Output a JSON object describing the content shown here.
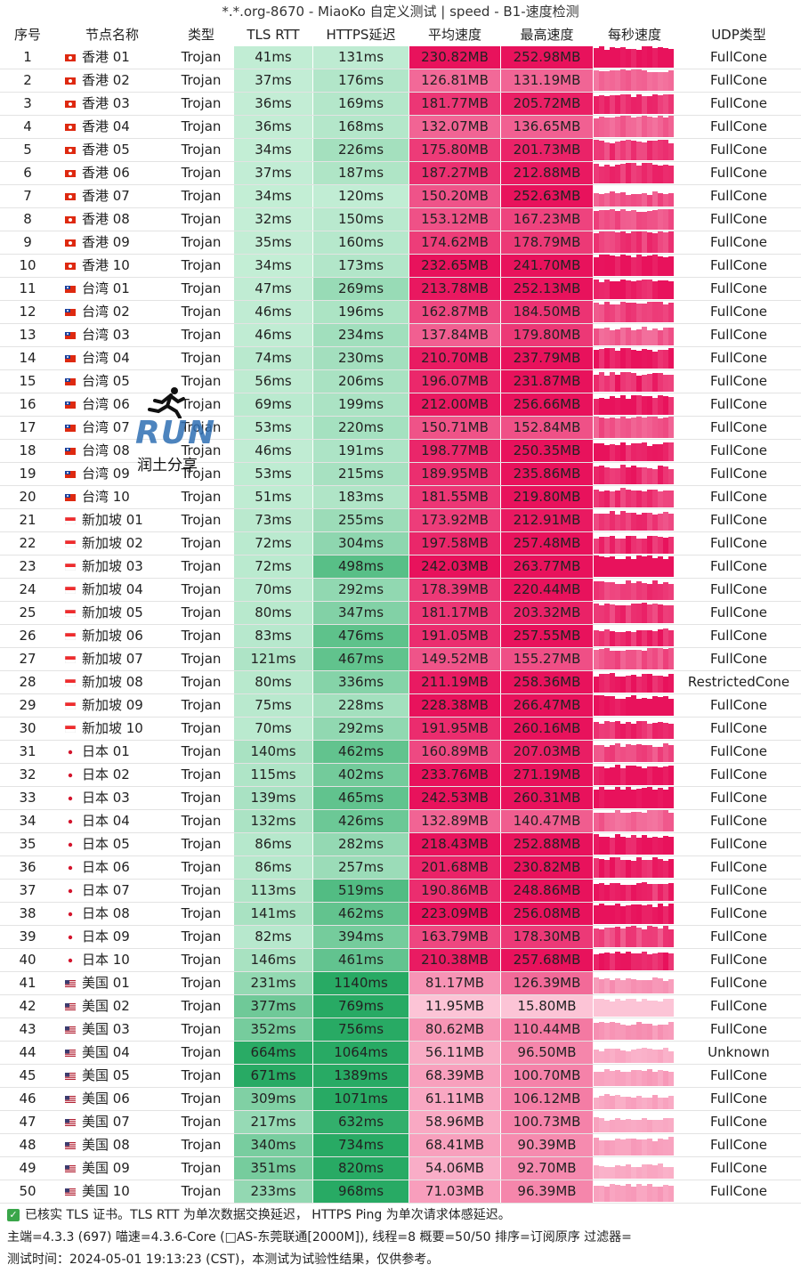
{
  "window": {
    "title": "*.*.org-8670 - MiaoKo 自定义测试 | speed - B1-速度检测"
  },
  "columns": {
    "idx": "序号",
    "name": "节点名称",
    "type": "类型",
    "tls": "TLS RTT",
    "https": "HTTPS延迟",
    "avg": "平均速度",
    "max": "最高速度",
    "persec": "每秒速度",
    "udp": "UDP类型"
  },
  "rows": [
    {
      "idx": "1",
      "flag": "hk",
      "name": "香港 01",
      "type": "Trojan",
      "tls": "41ms",
      "https": "131ms",
      "avg": "230.82MB",
      "max": "252.98MB",
      "udp": "FullCone"
    },
    {
      "idx": "2",
      "flag": "hk",
      "name": "香港 02",
      "type": "Trojan",
      "tls": "37ms",
      "https": "176ms",
      "avg": "126.81MB",
      "max": "131.19MB",
      "udp": "FullCone"
    },
    {
      "idx": "3",
      "flag": "hk",
      "name": "香港 03",
      "type": "Trojan",
      "tls": "36ms",
      "https": "169ms",
      "avg": "181.77MB",
      "max": "205.72MB",
      "udp": "FullCone"
    },
    {
      "idx": "4",
      "flag": "hk",
      "name": "香港 04",
      "type": "Trojan",
      "tls": "36ms",
      "https": "168ms",
      "avg": "132.07MB",
      "max": "136.65MB",
      "udp": "FullCone"
    },
    {
      "idx": "5",
      "flag": "hk",
      "name": "香港 05",
      "type": "Trojan",
      "tls": "34ms",
      "https": "226ms",
      "avg": "175.80MB",
      "max": "201.73MB",
      "udp": "FullCone"
    },
    {
      "idx": "6",
      "flag": "hk",
      "name": "香港 06",
      "type": "Trojan",
      "tls": "37ms",
      "https": "187ms",
      "avg": "187.27MB",
      "max": "212.88MB",
      "udp": "FullCone"
    },
    {
      "idx": "7",
      "flag": "hk",
      "name": "香港 07",
      "type": "Trojan",
      "tls": "34ms",
      "https": "120ms",
      "avg": "150.20MB",
      "max": "252.63MB",
      "udp": "FullCone"
    },
    {
      "idx": "8",
      "flag": "hk",
      "name": "香港 08",
      "type": "Trojan",
      "tls": "32ms",
      "https": "150ms",
      "avg": "153.12MB",
      "max": "167.23MB",
      "udp": "FullCone"
    },
    {
      "idx": "9",
      "flag": "hk",
      "name": "香港 09",
      "type": "Trojan",
      "tls": "35ms",
      "https": "160ms",
      "avg": "174.62MB",
      "max": "178.79MB",
      "udp": "FullCone"
    },
    {
      "idx": "10",
      "flag": "hk",
      "name": "香港 10",
      "type": "Trojan",
      "tls": "34ms",
      "https": "173ms",
      "avg": "232.65MB",
      "max": "241.70MB",
      "udp": "FullCone"
    },
    {
      "idx": "11",
      "flag": "tw",
      "name": "台湾 01",
      "type": "Trojan",
      "tls": "47ms",
      "https": "269ms",
      "avg": "213.78MB",
      "max": "252.13MB",
      "udp": "FullCone"
    },
    {
      "idx": "12",
      "flag": "tw",
      "name": "台湾 02",
      "type": "Trojan",
      "tls": "46ms",
      "https": "196ms",
      "avg": "162.87MB",
      "max": "184.50MB",
      "udp": "FullCone"
    },
    {
      "idx": "13",
      "flag": "tw",
      "name": "台湾 03",
      "type": "Trojan",
      "tls": "46ms",
      "https": "234ms",
      "avg": "137.84MB",
      "max": "179.80MB",
      "udp": "FullCone"
    },
    {
      "idx": "14",
      "flag": "tw",
      "name": "台湾 04",
      "type": "Trojan",
      "tls": "74ms",
      "https": "230ms",
      "avg": "210.70MB",
      "max": "237.79MB",
      "udp": "FullCone"
    },
    {
      "idx": "15",
      "flag": "tw",
      "name": "台湾 05",
      "type": "Trojan",
      "tls": "56ms",
      "https": "206ms",
      "avg": "196.07MB",
      "max": "231.87MB",
      "udp": "FullCone"
    },
    {
      "idx": "16",
      "flag": "tw",
      "name": "台湾 06",
      "type": "Trojan",
      "tls": "69ms",
      "https": "199ms",
      "avg": "212.00MB",
      "max": "256.66MB",
      "udp": "FullCone"
    },
    {
      "idx": "17",
      "flag": "tw",
      "name": "台湾 07",
      "type": "Trojan",
      "tls": "53ms",
      "https": "220ms",
      "avg": "150.71MB",
      "max": "152.84MB",
      "udp": "FullCone"
    },
    {
      "idx": "18",
      "flag": "tw",
      "name": "台湾 08",
      "type": "Trojan",
      "tls": "46ms",
      "https": "191ms",
      "avg": "198.77MB",
      "max": "250.35MB",
      "udp": "FullCone"
    },
    {
      "idx": "19",
      "flag": "tw",
      "name": "台湾 09",
      "type": "Trojan",
      "tls": "53ms",
      "https": "215ms",
      "avg": "189.95MB",
      "max": "235.86MB",
      "udp": "FullCone"
    },
    {
      "idx": "20",
      "flag": "tw",
      "name": "台湾 10",
      "type": "Trojan",
      "tls": "51ms",
      "https": "183ms",
      "avg": "181.55MB",
      "max": "219.80MB",
      "udp": "FullCone"
    },
    {
      "idx": "21",
      "flag": "sg",
      "name": "新加坡 01",
      "type": "Trojan",
      "tls": "73ms",
      "https": "255ms",
      "avg": "173.92MB",
      "max": "212.91MB",
      "udp": "FullCone"
    },
    {
      "idx": "22",
      "flag": "sg",
      "name": "新加坡 02",
      "type": "Trojan",
      "tls": "72ms",
      "https": "304ms",
      "avg": "197.58MB",
      "max": "257.48MB",
      "udp": "FullCone"
    },
    {
      "idx": "23",
      "flag": "sg",
      "name": "新加坡 03",
      "type": "Trojan",
      "tls": "72ms",
      "https": "498ms",
      "avg": "242.03MB",
      "max": "263.77MB",
      "udp": "FullCone"
    },
    {
      "idx": "24",
      "flag": "sg",
      "name": "新加坡 04",
      "type": "Trojan",
      "tls": "70ms",
      "https": "292ms",
      "avg": "178.39MB",
      "max": "220.44MB",
      "udp": "FullCone"
    },
    {
      "idx": "25",
      "flag": "sg",
      "name": "新加坡 05",
      "type": "Trojan",
      "tls": "80ms",
      "https": "347ms",
      "avg": "181.17MB",
      "max": "203.32MB",
      "udp": "FullCone"
    },
    {
      "idx": "26",
      "flag": "sg",
      "name": "新加坡 06",
      "type": "Trojan",
      "tls": "83ms",
      "https": "476ms",
      "avg": "191.05MB",
      "max": "257.55MB",
      "udp": "FullCone"
    },
    {
      "idx": "27",
      "flag": "sg",
      "name": "新加坡 07",
      "type": "Trojan",
      "tls": "121ms",
      "https": "467ms",
      "avg": "149.52MB",
      "max": "155.27MB",
      "udp": "FullCone"
    },
    {
      "idx": "28",
      "flag": "sg",
      "name": "新加坡 08",
      "type": "Trojan",
      "tls": "80ms",
      "https": "336ms",
      "avg": "211.19MB",
      "max": "258.36MB",
      "udp": "RestrictedCone"
    },
    {
      "idx": "29",
      "flag": "sg",
      "name": "新加坡 09",
      "type": "Trojan",
      "tls": "75ms",
      "https": "228ms",
      "avg": "228.38MB",
      "max": "266.47MB",
      "udp": "FullCone"
    },
    {
      "idx": "30",
      "flag": "sg",
      "name": "新加坡 10",
      "type": "Trojan",
      "tls": "70ms",
      "https": "292ms",
      "avg": "191.95MB",
      "max": "260.16MB",
      "udp": "FullCone"
    },
    {
      "idx": "31",
      "flag": "jp",
      "name": "日本 01",
      "type": "Trojan",
      "tls": "140ms",
      "https": "462ms",
      "avg": "160.89MB",
      "max": "207.03MB",
      "udp": "FullCone"
    },
    {
      "idx": "32",
      "flag": "jp",
      "name": "日本 02",
      "type": "Trojan",
      "tls": "115ms",
      "https": "402ms",
      "avg": "233.76MB",
      "max": "271.19MB",
      "udp": "FullCone"
    },
    {
      "idx": "33",
      "flag": "jp",
      "name": "日本 03",
      "type": "Trojan",
      "tls": "139ms",
      "https": "465ms",
      "avg": "242.53MB",
      "max": "260.31MB",
      "udp": "FullCone"
    },
    {
      "idx": "34",
      "flag": "jp",
      "name": "日本 04",
      "type": "Trojan",
      "tls": "132ms",
      "https": "426ms",
      "avg": "132.89MB",
      "max": "140.47MB",
      "udp": "FullCone"
    },
    {
      "idx": "35",
      "flag": "jp",
      "name": "日本 05",
      "type": "Trojan",
      "tls": "86ms",
      "https": "282ms",
      "avg": "218.43MB",
      "max": "252.88MB",
      "udp": "FullCone"
    },
    {
      "idx": "36",
      "flag": "jp",
      "name": "日本 06",
      "type": "Trojan",
      "tls": "86ms",
      "https": "257ms",
      "avg": "201.68MB",
      "max": "230.82MB",
      "udp": "FullCone"
    },
    {
      "idx": "37",
      "flag": "jp",
      "name": "日本 07",
      "type": "Trojan",
      "tls": "113ms",
      "https": "519ms",
      "avg": "190.86MB",
      "max": "248.86MB",
      "udp": "FullCone"
    },
    {
      "idx": "38",
      "flag": "jp",
      "name": "日本 08",
      "type": "Trojan",
      "tls": "141ms",
      "https": "462ms",
      "avg": "223.09MB",
      "max": "256.08MB",
      "udp": "FullCone"
    },
    {
      "idx": "39",
      "flag": "jp",
      "name": "日本 09",
      "type": "Trojan",
      "tls": "82ms",
      "https": "394ms",
      "avg": "163.79MB",
      "max": "178.30MB",
      "udp": "FullCone"
    },
    {
      "idx": "40",
      "flag": "jp",
      "name": "日本 10",
      "type": "Trojan",
      "tls": "146ms",
      "https": "461ms",
      "avg": "210.38MB",
      "max": "257.68MB",
      "udp": "FullCone"
    },
    {
      "idx": "41",
      "flag": "us",
      "name": "美国 01",
      "type": "Trojan",
      "tls": "231ms",
      "https": "1140ms",
      "avg": "81.17MB",
      "max": "126.39MB",
      "udp": "FullCone"
    },
    {
      "idx": "42",
      "flag": "us",
      "name": "美国 02",
      "type": "Trojan",
      "tls": "377ms",
      "https": "769ms",
      "avg": "11.95MB",
      "max": "15.80MB",
      "udp": "FullCone"
    },
    {
      "idx": "43",
      "flag": "us",
      "name": "美国 03",
      "type": "Trojan",
      "tls": "352ms",
      "https": "756ms",
      "avg": "80.62MB",
      "max": "110.44MB",
      "udp": "FullCone"
    },
    {
      "idx": "44",
      "flag": "us",
      "name": "美国 04",
      "type": "Trojan",
      "tls": "664ms",
      "https": "1064ms",
      "avg": "56.11MB",
      "max": "96.50MB",
      "udp": "Unknown"
    },
    {
      "idx": "45",
      "flag": "us",
      "name": "美国 05",
      "type": "Trojan",
      "tls": "671ms",
      "https": "1389ms",
      "avg": "68.39MB",
      "max": "100.70MB",
      "udp": "FullCone"
    },
    {
      "idx": "46",
      "flag": "us",
      "name": "美国 06",
      "type": "Trojan",
      "tls": "309ms",
      "https": "1071ms",
      "avg": "61.11MB",
      "max": "106.12MB",
      "udp": "FullCone"
    },
    {
      "idx": "47",
      "flag": "us",
      "name": "美国 07",
      "type": "Trojan",
      "tls": "217ms",
      "https": "632ms",
      "avg": "58.96MB",
      "max": "100.73MB",
      "udp": "FullCone"
    },
    {
      "idx": "48",
      "flag": "us",
      "name": "美国 08",
      "type": "Trojan",
      "tls": "340ms",
      "https": "734ms",
      "avg": "68.41MB",
      "max": "90.39MB",
      "udp": "FullCone"
    },
    {
      "idx": "49",
      "flag": "us",
      "name": "美国 09",
      "type": "Trojan",
      "tls": "351ms",
      "https": "820ms",
      "avg": "54.06MB",
      "max": "92.70MB",
      "udp": "FullCone"
    },
    {
      "idx": "50",
      "flag": "us",
      "name": "美国 10",
      "type": "Trojan",
      "tls": "233ms",
      "https": "968ms",
      "avg": "71.03MB",
      "max": "96.39MB",
      "udp": "FullCone"
    }
  ],
  "footer": {
    "line1": "已核实 TLS 证书。TLS RTT 为单次数据交换延迟， HTTPS Ping 为单次请求体感延迟。",
    "line2": "主端=4.3.3 (697) 喵速=4.3.6-Core (□AS-东莞联通[2000M]), 线程=8 概要=50/50 排序=订阅原序 过滤器=",
    "line3": "测试时间：2024-05-01 19:13:23 (CST)，本测试为试验性结果，仅供参考。"
  },
  "logo": {
    "text": "RUN",
    "subtitle": "润土分享"
  },
  "colors": {
    "check": "#3aa64a",
    "row_border": "#e3e3e3"
  },
  "icons": {
    "footer_check": "check-icon",
    "logo": "running-man-icon"
  }
}
